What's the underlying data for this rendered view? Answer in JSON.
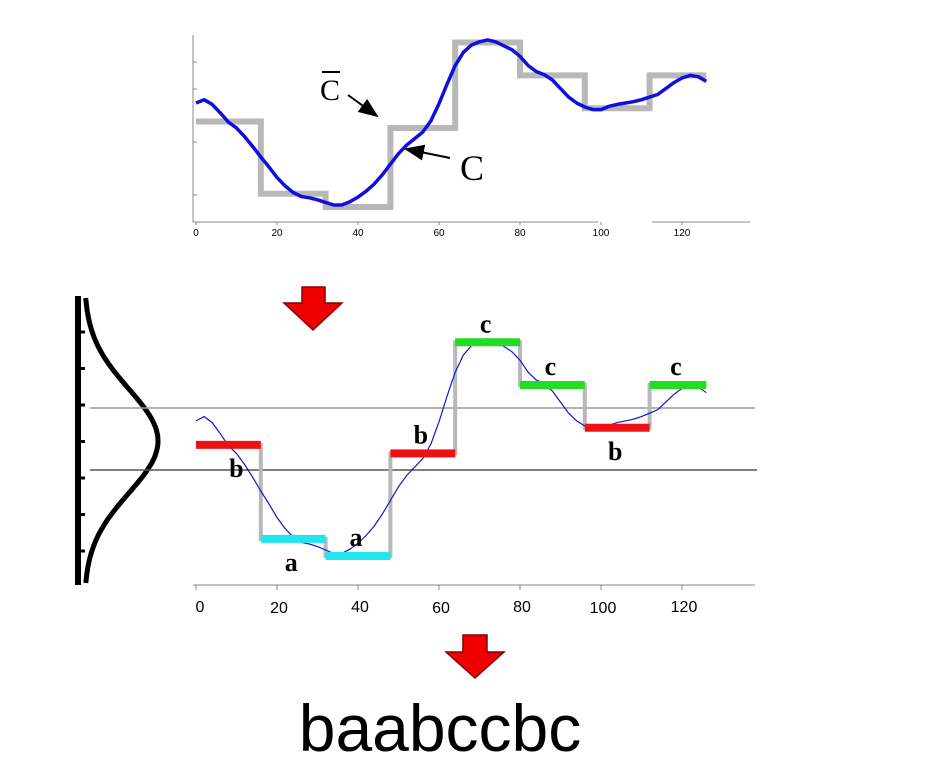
{
  "top_plot": {
    "x_ticks": [
      "0",
      "20",
      "40",
      "60",
      "80",
      "100",
      "120"
    ],
    "label_c_bar": "C",
    "label_c": "C",
    "colors": {
      "series": "#1010dd",
      "paa": "#b8b8b8"
    },
    "series_c": [
      [
        0,
        50.8
      ],
      [
        2,
        51.3
      ],
      [
        4,
        50.6
      ],
      [
        6,
        49.3
      ],
      [
        8,
        47.9
      ],
      [
        10,
        47
      ],
      [
        12,
        45.7
      ],
      [
        14,
        44.2
      ],
      [
        16,
        42.6
      ],
      [
        18,
        41.1
      ],
      [
        20,
        39.5
      ],
      [
        22,
        38.2
      ],
      [
        24,
        37.2
      ],
      [
        26,
        36.6
      ],
      [
        28,
        36.4
      ],
      [
        30,
        36.1
      ],
      [
        32,
        35.7
      ],
      [
        34,
        35.3
      ],
      [
        36,
        35.3
      ],
      [
        38,
        35.8
      ],
      [
        40,
        36.5
      ],
      [
        42,
        37.4
      ],
      [
        44,
        38.5
      ],
      [
        46,
        39.9
      ],
      [
        48,
        41.5
      ],
      [
        50,
        43.1
      ],
      [
        52,
        44.4
      ],
      [
        54,
        45.4
      ],
      [
        56,
        46.4
      ],
      [
        58,
        48.1
      ],
      [
        60,
        50.7
      ],
      [
        62,
        53.7
      ],
      [
        64,
        56.5
      ],
      [
        66,
        58.5
      ],
      [
        68,
        59.6
      ],
      [
        70,
        60.1
      ],
      [
        72,
        60.4
      ],
      [
        74,
        60.1
      ],
      [
        76,
        59.5
      ],
      [
        78,
        58.9
      ],
      [
        80,
        57.9
      ],
      [
        82,
        56.5
      ],
      [
        84,
        55.6
      ],
      [
        86,
        55.1
      ],
      [
        88,
        54.3
      ],
      [
        90,
        53
      ],
      [
        92,
        51.7
      ],
      [
        94,
        50.8
      ],
      [
        96,
        50.2
      ],
      [
        98,
        49.8
      ],
      [
        100,
        49.8
      ],
      [
        102,
        50.3
      ],
      [
        104,
        50.6
      ],
      [
        106,
        50.8
      ],
      [
        108,
        51
      ],
      [
        110,
        51.3
      ],
      [
        112,
        51.7
      ],
      [
        114,
        52.1
      ],
      [
        116,
        53
      ],
      [
        118,
        53.9
      ],
      [
        120,
        54.6
      ],
      [
        122,
        55
      ],
      [
        124,
        54.8
      ],
      [
        126,
        54.1
      ]
    ],
    "paa_c": [
      [
        0,
        48
      ],
      [
        16,
        48
      ],
      [
        16,
        37
      ],
      [
        32,
        37
      ],
      [
        32,
        35
      ],
      [
        48,
        35
      ],
      [
        48,
        47
      ],
      [
        64,
        47
      ],
      [
        64,
        60
      ],
      [
        80,
        60
      ],
      [
        80,
        55
      ],
      [
        96,
        55
      ],
      [
        96,
        50
      ],
      [
        112,
        50
      ],
      [
        112,
        55
      ],
      [
        126,
        55
      ]
    ]
  },
  "bottom_plot": {
    "x_ticks": [
      "0",
      "20",
      "40",
      "60",
      "80",
      "100",
      "120"
    ],
    "colors": {
      "a": "#22e6ee",
      "b": "#ee1111",
      "c": "#22dd22",
      "paa": "#b8b8b8",
      "series": "#1515cc"
    },
    "segments": [
      {
        "x0": 0,
        "x1": 16,
        "y": 48,
        "symbol": "b"
      },
      {
        "x0": 16,
        "x1": 32,
        "y": 37,
        "symbol": "a"
      },
      {
        "x0": 32,
        "x1": 48,
        "y": 35,
        "symbol": "a"
      },
      {
        "x0": 48,
        "x1": 64,
        "y": 47,
        "symbol": "b"
      },
      {
        "x0": 64,
        "x1": 80,
        "y": 60,
        "symbol": "c"
      },
      {
        "x0": 80,
        "x1": 96,
        "y": 55,
        "symbol": "c"
      },
      {
        "x0": 96,
        "x1": 112,
        "y": 50,
        "symbol": "b"
      },
      {
        "x0": 112,
        "x1": 126,
        "y": 55,
        "symbol": "c"
      }
    ]
  },
  "result_word": "baabccbc",
  "arrow_color": "#ee0000"
}
